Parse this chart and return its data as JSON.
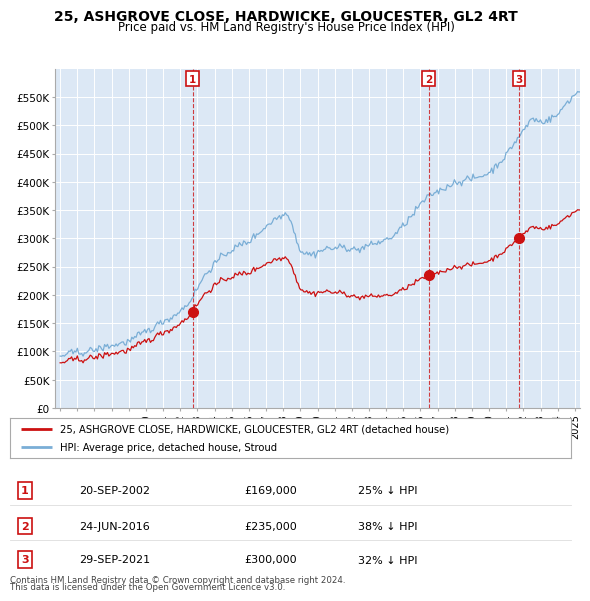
{
  "title": "25, ASHGROVE CLOSE, HARDWICKE, GLOUCESTER, GL2 4RT",
  "subtitle": "Price paid vs. HM Land Registry's House Price Index (HPI)",
  "title_fontsize": 10,
  "subtitle_fontsize": 8.5,
  "bg_color": "#ffffff",
  "plot_bg_color": "#dce8f5",
  "grid_color": "#ffffff",
  "hpi_color": "#7aaed6",
  "price_color": "#cc1111",
  "ylim": [
    0,
    600000
  ],
  "yticks": [
    0,
    50000,
    100000,
    150000,
    200000,
    250000,
    300000,
    350000,
    400000,
    450000,
    500000,
    550000
  ],
  "ytick_labels": [
    "£0",
    "£50K",
    "£100K",
    "£150K",
    "£200K",
    "£250K",
    "£300K",
    "£350K",
    "£400K",
    "£450K",
    "£500K",
    "£550K"
  ],
  "sales": [
    {
      "date_num": 2002.72,
      "price": 169000,
      "label": "1"
    },
    {
      "date_num": 2016.48,
      "price": 235000,
      "label": "2"
    },
    {
      "date_num": 2021.74,
      "price": 300000,
      "label": "3"
    }
  ],
  "sale_labels": [
    {
      "num": "1",
      "date": "20-SEP-2002",
      "price": "£169,000",
      "pct": "25% ↓ HPI"
    },
    {
      "num": "2",
      "date": "24-JUN-2016",
      "price": "£235,000",
      "pct": "38% ↓ HPI"
    },
    {
      "num": "3",
      "date": "29-SEP-2021",
      "price": "£300,000",
      "pct": "32% ↓ HPI"
    }
  ],
  "legend_line1": "25, ASHGROVE CLOSE, HARDWICKE, GLOUCESTER, GL2 4RT (detached house)",
  "legend_line2": "HPI: Average price, detached house, Stroud",
  "footer1": "Contains HM Land Registry data © Crown copyright and database right 2024.",
  "footer2": "This data is licensed under the Open Government Licence v3.0.",
  "xlim_left": 1994.7,
  "xlim_right": 2025.3
}
